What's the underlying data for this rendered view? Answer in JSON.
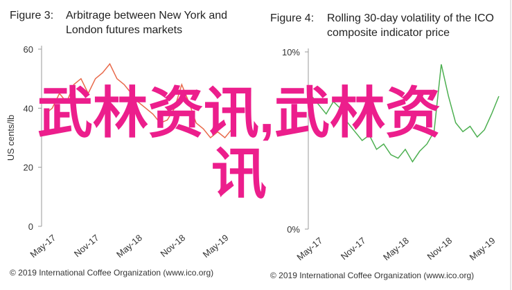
{
  "chart_data": [
    {
      "type": "line",
      "figure_label": "Figure 3:",
      "title": "Arbitrage between New York and London futures markets",
      "y_label": "US cents/lb",
      "source": "© 2019 International Coffee Organization (www.ico.org)",
      "categories": [
        null,
        "May-17",
        null,
        null,
        null,
        null,
        null,
        "Nov-17",
        null,
        null,
        null,
        null,
        null,
        "May-18",
        null,
        null,
        null,
        null,
        null,
        "Nov-18",
        null,
        null,
        null,
        null,
        null,
        "May-19",
        null
      ],
      "series": [
        {
          "color": "#e8694a",
          "values": [
            38,
            40,
            45,
            42,
            48,
            50,
            45,
            50,
            52,
            55,
            50,
            48,
            45,
            42,
            40,
            38,
            35,
            36,
            40,
            48,
            42,
            35,
            33,
            30,
            32,
            30,
            33
          ]
        }
      ],
      "ylim": [
        0,
        60
      ],
      "yticks": [
        0,
        20,
        40,
        60
      ]
    },
    {
      "type": "line",
      "figure_label": "Figure 4:",
      "title": "Rolling 30-day volatility of the ICO composite indicator price",
      "source": "© 2019 International Coffee Organization (www.ico.org)",
      "categories": [
        null,
        "May-17",
        null,
        null,
        null,
        null,
        null,
        "Nov-17",
        null,
        null,
        null,
        null,
        null,
        "May-18",
        null,
        null,
        null,
        null,
        null,
        "Nov-18",
        null,
        null,
        null,
        null,
        null,
        "May-19",
        null
      ],
      "series": [
        {
          "color": "#4caf50",
          "values": [
            7.5,
            7.0,
            6.5,
            7.2,
            6.8,
            6.0,
            5.5,
            5.0,
            5.3,
            4.5,
            4.8,
            4.2,
            4.0,
            4.5,
            3.8,
            4.4,
            4.8,
            5.5,
            9.3,
            7.5,
            6.0,
            5.5,
            5.8,
            5.2,
            5.6,
            6.5,
            7.5
          ]
        }
      ],
      "ylim": [
        0,
        10
      ],
      "yticks": [
        {
          "value": 0,
          "label": "0%"
        },
        {
          "value": 10,
          "label": "10%"
        }
      ]
    }
  ],
  "overlay_text": "武林资讯,武林资讯"
}
